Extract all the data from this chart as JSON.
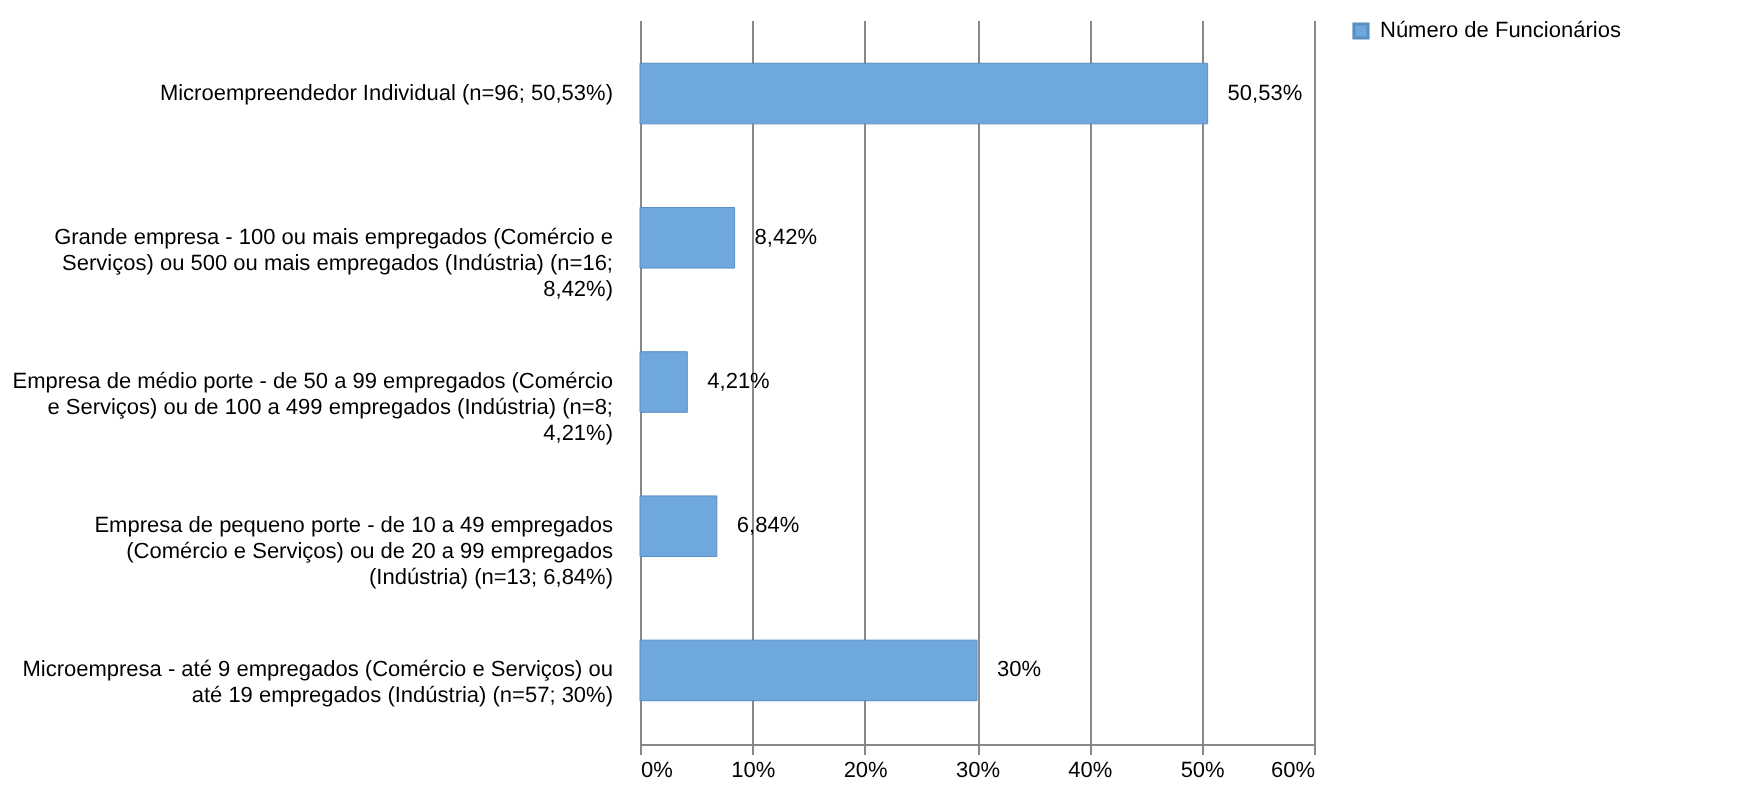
{
  "chart_data": {
    "type": "bar",
    "orientation": "horizontal",
    "categories": [
      "Microempreendedor Individual (n=96; 50,53%)",
      "Grande empresa - 100 ou mais empregados (Comércio e Serviços) ou 500 ou mais empregados (Indústria) (n=16; 8,42%)",
      "Empresa de médio porte - de 50 a 99 empregados (Comércio e Serviços) ou de 100 a 499 empregados (Indústria) (n=8; 4,21%)",
      "Empresa de pequeno porte - de 10 a 49 empregados (Comércio e Serviços) ou de 20 a 99 empregados (Indústria) (n=13; 6,84%)",
      "Microempresa - até 9 empregados (Comércio e Serviços) ou até 19 empregados (Indústria) (n=57; 30%)"
    ],
    "series": [
      {
        "name": "Número de Funcionários",
        "color": "#6fa8dc",
        "values": [
          50.53,
          8.42,
          4.21,
          6.84,
          30
        ],
        "value_labels": [
          "50,53%",
          "8,42%",
          "4,21%",
          "6,84%",
          "30%"
        ]
      }
    ],
    "xlim": [
      0,
      60
    ],
    "xticks": [
      {
        "value": 0,
        "label": "0%"
      },
      {
        "value": 10,
        "label": "10%"
      },
      {
        "value": 20,
        "label": "20%"
      },
      {
        "value": 30,
        "label": "30%"
      },
      {
        "value": 40,
        "label": "40%"
      },
      {
        "value": 50,
        "label": "50%"
      },
      {
        "value": 60,
        "label": "60%"
      }
    ],
    "grid": "x",
    "legend": "right"
  }
}
